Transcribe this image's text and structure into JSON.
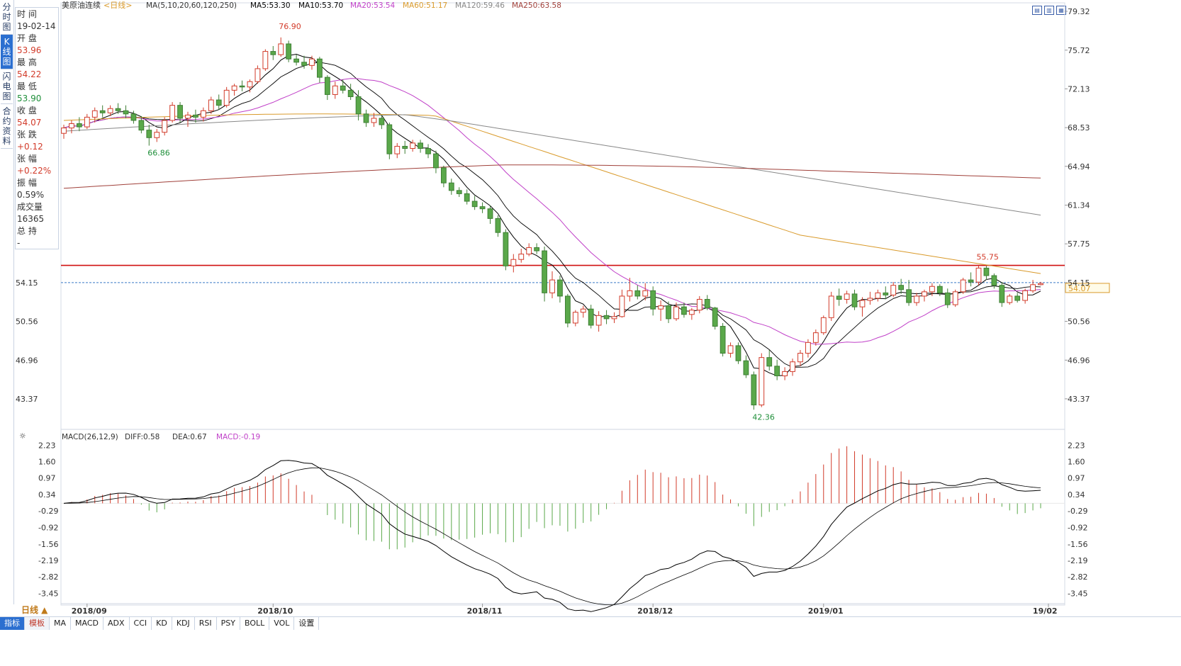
{
  "side_tabs": [
    "分时图",
    "K线图",
    "闪电图",
    "合约资料"
  ],
  "info_panel": {
    "time_label": "时 间",
    "time": "19-02-14",
    "open_label": "开 盘",
    "open": "53.96",
    "high_label": "最 高",
    "high": "54.22",
    "low_label": "最 低",
    "low": "53.90",
    "close_label": "收 盘",
    "close": "54.07",
    "change_label": "张 跌",
    "change": "+0.12",
    "pct_label": "张 幅",
    "pct": "+0.22%",
    "amp_label": "振 幅",
    "amp": "0.59%",
    "vol_label": "成交量",
    "vol": "16365",
    "oi_label": "总 持",
    "oi": "-"
  },
  "header": {
    "name": "美原油连续",
    "period": "<日线>",
    "ma_params": "MA(5,10,20,60,120,250)",
    "ma5": "MA5:53.30",
    "ma10": "MA10:53.70",
    "ma20": "MA20:53.54",
    "ma60": "MA60:51.17",
    "ma120": "MA120:59.46",
    "ma250": "MA250:63.58"
  },
  "macd_header": {
    "label": "MACD(26,12,9)",
    "diff": "DIFF:0.58",
    "dea": "DEA:0.67",
    "macd": "MACD:-0.19"
  },
  "colors": {
    "up": "#d23b2a",
    "down": "#5aa84a",
    "ma5": "#000000",
    "ma10": "#000000",
    "ma20": "#c040c8",
    "ma60": "#d99a2b",
    "ma120": "#888888",
    "ma250": "#a0403a",
    "hline": "#d01010",
    "price_line": "#3a7ac8"
  },
  "price_axis_labels": [
    "79.32",
    "75.72",
    "72.13",
    "68.53",
    "64.94",
    "61.34",
    "57.75",
    "54.15",
    "50.56",
    "46.96",
    "43.37"
  ],
  "left_price_labels": [
    "54.15",
    "50.56",
    "46.96",
    "43.37"
  ],
  "macd_axis_labels": [
    "2.23",
    "1.60",
    "0.97",
    "0.34",
    "-0.29",
    "-0.92",
    "-1.56",
    "-2.19",
    "-2.82",
    "-3.45"
  ],
  "current_price_tag": "54.07",
  "annotations": {
    "high": "76.90",
    "low1": "66.86",
    "low2": "42.36",
    "resist": "55.75"
  },
  "month_labels": [
    "2018/09",
    "2018/10",
    "2018/11",
    "2018/12",
    "2019/01",
    "19/02"
  ],
  "period_tag": "日线 ▲",
  "bottom_tabs": [
    "指标",
    "模板",
    "MA",
    "MACD",
    "ADX",
    "CCI",
    "KD",
    "KDJ",
    "RSI",
    "PSY",
    "BOLL",
    "VOL",
    "设置"
  ],
  "chart_data": {
    "type": "candlestick",
    "price_range": [
      40.8,
      79.32
    ],
    "resistance_level": 55.75,
    "current_price": 54.07,
    "candles_ohlc": [
      [
        68.0,
        68.8,
        67.5,
        68.5
      ],
      [
        68.5,
        69.2,
        68.0,
        68.9
      ],
      [
        68.9,
        69.5,
        68.2,
        68.6
      ],
      [
        68.6,
        69.8,
        68.4,
        69.5
      ],
      [
        69.5,
        70.4,
        69.0,
        70.1
      ],
      [
        70.1,
        70.6,
        69.5,
        69.9
      ],
      [
        69.9,
        70.6,
        69.6,
        70.3
      ],
      [
        70.3,
        70.8,
        69.8,
        70.1
      ],
      [
        70.1,
        70.6,
        69.4,
        69.8
      ],
      [
        69.8,
        70.1,
        68.9,
        69.2
      ],
      [
        69.2,
        69.6,
        68.0,
        68.3
      ],
      [
        68.3,
        68.8,
        66.86,
        67.6
      ],
      [
        67.6,
        68.4,
        67.2,
        68.1
      ],
      [
        68.1,
        69.5,
        67.8,
        69.2
      ],
      [
        69.2,
        70.9,
        69.0,
        70.6
      ],
      [
        70.6,
        70.9,
        69.0,
        69.4
      ],
      [
        69.4,
        70.0,
        68.6,
        69.7
      ],
      [
        69.7,
        70.2,
        69.0,
        69.5
      ],
      [
        69.5,
        70.4,
        69.1,
        70.1
      ],
      [
        70.1,
        71.4,
        69.8,
        71.1
      ],
      [
        71.1,
        71.6,
        70.2,
        70.6
      ],
      [
        70.6,
        72.3,
        70.4,
        72.0
      ],
      [
        72.0,
        72.6,
        71.5,
        72.4
      ],
      [
        72.4,
        72.9,
        71.9,
        72.3
      ],
      [
        72.3,
        73.0,
        71.8,
        72.8
      ],
      [
        72.8,
        74.3,
        72.6,
        74.0
      ],
      [
        74.0,
        75.8,
        73.8,
        75.6
      ],
      [
        75.6,
        76.1,
        74.8,
        75.3
      ],
      [
        75.3,
        76.9,
        75.1,
        76.3
      ],
      [
        76.3,
        76.6,
        74.6,
        74.9
      ],
      [
        74.9,
        75.3,
        74.3,
        74.6
      ],
      [
        74.6,
        75.2,
        74.0,
        74.3
      ],
      [
        74.3,
        75.2,
        73.9,
        74.9
      ],
      [
        74.9,
        75.1,
        72.7,
        73.2
      ],
      [
        73.2,
        73.4,
        71.1,
        71.6
      ],
      [
        71.6,
        72.8,
        71.2,
        72.4
      ],
      [
        72.4,
        73.0,
        71.7,
        72.0
      ],
      [
        72.0,
        72.6,
        71.1,
        71.4
      ],
      [
        71.4,
        72.0,
        69.2,
        69.8
      ],
      [
        69.8,
        70.2,
        68.6,
        69.0
      ],
      [
        69.0,
        69.9,
        68.6,
        69.4
      ],
      [
        69.4,
        69.7,
        68.4,
        68.8
      ],
      [
        68.8,
        69.0,
        65.6,
        66.1
      ],
      [
        66.1,
        67.1,
        65.7,
        66.8
      ],
      [
        66.8,
        67.3,
        66.1,
        66.6
      ],
      [
        66.6,
        67.4,
        66.3,
        67.1
      ],
      [
        67.1,
        67.4,
        66.2,
        66.6
      ],
      [
        66.6,
        67.0,
        65.7,
        66.1
      ],
      [
        66.1,
        66.4,
        64.3,
        64.8
      ],
      [
        64.8,
        65.0,
        63.0,
        63.4
      ],
      [
        63.4,
        63.8,
        62.3,
        62.7
      ],
      [
        62.7,
        63.0,
        62.1,
        62.4
      ],
      [
        62.4,
        62.8,
        61.4,
        61.7
      ],
      [
        61.7,
        62.2,
        60.9,
        61.2
      ],
      [
        61.2,
        61.6,
        60.6,
        61.0
      ],
      [
        61.0,
        61.3,
        59.6,
        60.1
      ],
      [
        60.1,
        60.4,
        58.4,
        58.8
      ],
      [
        58.8,
        59.1,
        55.3,
        55.7
      ],
      [
        55.7,
        56.8,
        55.1,
        56.3
      ],
      [
        56.3,
        57.3,
        56.0,
        56.8
      ],
      [
        56.8,
        57.8,
        56.6,
        57.4
      ],
      [
        57.4,
        57.8,
        56.8,
        57.1
      ],
      [
        57.1,
        57.5,
        52.4,
        53.2
      ],
      [
        53.2,
        55.2,
        52.7,
        54.4
      ],
      [
        54.4,
        54.8,
        52.3,
        52.9
      ],
      [
        52.9,
        53.1,
        50.0,
        50.4
      ],
      [
        50.4,
        51.6,
        50.1,
        51.4
      ],
      [
        51.4,
        52.0,
        50.9,
        51.7
      ],
      [
        51.7,
        52.1,
        49.9,
        50.2
      ],
      [
        50.2,
        51.5,
        49.6,
        51.1
      ],
      [
        51.1,
        51.6,
        50.3,
        50.8
      ],
      [
        50.8,
        51.4,
        50.4,
        51.0
      ],
      [
        51.0,
        53.5,
        50.9,
        52.9
      ],
      [
        52.9,
        54.6,
        52.4,
        53.4
      ],
      [
        53.4,
        53.9,
        52.6,
        52.9
      ],
      [
        52.9,
        54.1,
        52.5,
        53.4
      ],
      [
        53.4,
        53.8,
        51.1,
        51.7
      ],
      [
        51.7,
        52.5,
        50.6,
        52.0
      ],
      [
        52.0,
        52.4,
        50.4,
        50.8
      ],
      [
        50.8,
        52.3,
        50.6,
        51.9
      ],
      [
        51.9,
        52.3,
        50.9,
        51.2
      ],
      [
        51.2,
        51.8,
        50.7,
        51.6
      ],
      [
        51.6,
        52.9,
        51.3,
        52.6
      ],
      [
        52.6,
        53.0,
        51.6,
        51.8
      ],
      [
        51.8,
        51.9,
        49.8,
        50.1
      ],
      [
        50.1,
        50.4,
        47.3,
        47.6
      ],
      [
        47.6,
        48.6,
        47.2,
        48.3
      ],
      [
        48.3,
        48.6,
        46.6,
        46.9
      ],
      [
        46.9,
        47.4,
        45.3,
        45.6
      ],
      [
        45.6,
        45.9,
        42.36,
        42.8
      ],
      [
        42.8,
        47.6,
        42.6,
        47.2
      ],
      [
        47.2,
        47.9,
        46.0,
        46.4
      ],
      [
        46.4,
        47.0,
        45.1,
        45.5
      ],
      [
        45.5,
        46.3,
        45.1,
        45.9
      ],
      [
        45.9,
        47.1,
        45.5,
        46.8
      ],
      [
        46.8,
        47.9,
        46.4,
        47.6
      ],
      [
        47.6,
        48.9,
        47.2,
        48.6
      ],
      [
        48.6,
        49.8,
        48.3,
        49.5
      ],
      [
        49.5,
        51.1,
        49.3,
        50.9
      ],
      [
        50.9,
        53.3,
        50.6,
        52.9
      ],
      [
        52.9,
        53.6,
        52.0,
        52.6
      ],
      [
        52.6,
        53.4,
        52.2,
        53.1
      ],
      [
        53.1,
        53.5,
        51.6,
        51.9
      ],
      [
        51.9,
        52.8,
        51.0,
        52.5
      ],
      [
        52.5,
        53.3,
        52.1,
        52.7
      ],
      [
        52.7,
        53.5,
        52.4,
        53.2
      ],
      [
        53.2,
        53.8,
        52.6,
        53.0
      ],
      [
        53.0,
        54.2,
        52.8,
        53.9
      ],
      [
        53.9,
        54.5,
        53.1,
        53.5
      ],
      [
        53.5,
        54.4,
        52.0,
        52.3
      ],
      [
        52.3,
        53.2,
        52.0,
        52.9
      ],
      [
        52.9,
        53.5,
        52.4,
        53.3
      ],
      [
        53.3,
        54.1,
        52.9,
        53.8
      ],
      [
        53.8,
        54.0,
        52.9,
        53.2
      ],
      [
        53.2,
        53.6,
        51.8,
        52.1
      ],
      [
        52.1,
        53.5,
        51.9,
        53.3
      ],
      [
        53.3,
        54.6,
        53.1,
        54.4
      ],
      [
        54.4,
        55.1,
        53.8,
        54.2
      ],
      [
        54.2,
        55.75,
        53.9,
        55.5
      ],
      [
        55.5,
        55.7,
        54.4,
        54.8
      ],
      [
        54.8,
        55.0,
        53.6,
        53.9
      ],
      [
        53.9,
        54.2,
        51.9,
        52.3
      ],
      [
        52.3,
        53.1,
        52.1,
        52.9
      ],
      [
        52.9,
        53.2,
        52.3,
        52.5
      ],
      [
        52.5,
        53.6,
        52.2,
        53.4
      ],
      [
        53.4,
        54.4,
        53.2,
        53.96
      ],
      [
        53.96,
        54.22,
        53.9,
        54.07
      ]
    ]
  }
}
